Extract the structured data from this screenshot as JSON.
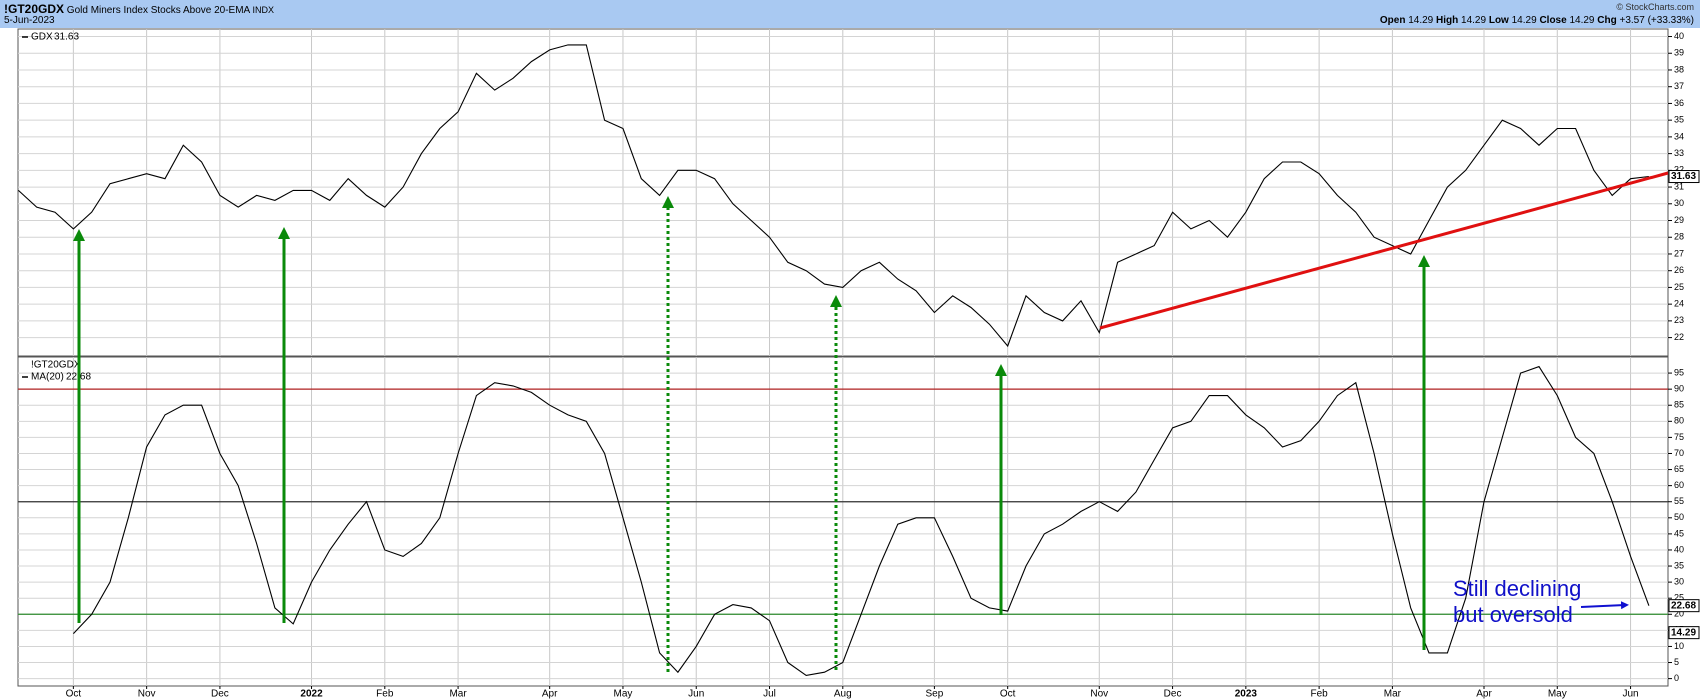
{
  "header": {
    "symbol": "!GT20GDX",
    "name": "Gold Miners Index Stocks Above 20-EMA",
    "exchange": "INDX",
    "date": "5-Jun-2023",
    "copyright": "© StockCharts.com",
    "quote": [
      {
        "label": "Open",
        "value": 14.29
      },
      {
        "label": "High",
        "value": 14.29
      },
      {
        "label": "Low",
        "value": 14.29
      },
      {
        "label": "Close",
        "value": 14.29
      },
      {
        "label": "Chg",
        "value": "+3.57 (+33.33%)"
      }
    ]
  },
  "chart_data": [
    {
      "type": "line",
      "ylim": [
        20.9,
        40.45
      ],
      "yticks": [
        22,
        23,
        24,
        25,
        26,
        27,
        28,
        29,
        30,
        31,
        32,
        33,
        34,
        35,
        36,
        37,
        38,
        39,
        40
      ],
      "grid": true,
      "series": [
        {
          "name": "GDX",
          "color": "#000000",
          "values": [
            30.8,
            29.8,
            29.5,
            28.5,
            29.5,
            31.2,
            31.5,
            31.8,
            31.5,
            33.5,
            32.5,
            30.5,
            29.8,
            30.5,
            30.2,
            30.8,
            30.8,
            30.2,
            31.5,
            30.5,
            29.8,
            31,
            33,
            34.5,
            35.5,
            37.8,
            36.8,
            37.5,
            38.5,
            39.2,
            39.5,
            39.5,
            35,
            34.5,
            31.5,
            30.5,
            32,
            32,
            31.5,
            30,
            29,
            28,
            26.5,
            26,
            25.2,
            25,
            26,
            26.5,
            25.5,
            24.8,
            23.5,
            24.5,
            23.8,
            22.8,
            21.5,
            24.5,
            23.5,
            23,
            24.2,
            22.3,
            26.5,
            27,
            27.5,
            29.5,
            28.5,
            29,
            28,
            29.5,
            31.5,
            32.5,
            32.5,
            31.8,
            30.5,
            29.5,
            28,
            27.5,
            27,
            29,
            31,
            32,
            33.5,
            35,
            34.5,
            33.5,
            34.5,
            34.5,
            32,
            30.5,
            31.5,
            31.63
          ]
        }
      ]
    },
    {
      "type": "line",
      "ylim": [
        -2.3,
        100
      ],
      "yticks": [
        0,
        5,
        10,
        15,
        20,
        25,
        30,
        35,
        40,
        45,
        50,
        55,
        60,
        65,
        70,
        75,
        80,
        85,
        90,
        95
      ],
      "grid": true,
      "last_close": 14.29,
      "reference_lines": [
        {
          "value": 90,
          "color": "#b22222"
        },
        {
          "value": 55,
          "color": "#333333"
        },
        {
          "value": 20,
          "color": "#2e8b2e"
        }
      ],
      "annotation": [
        "Still declining",
        "but oversold"
      ],
      "categories": [
        null,
        null,
        null,
        "Oct",
        null,
        null,
        null,
        "Nov",
        null,
        null,
        null,
        "Dec",
        null,
        null,
        null,
        null,
        "2022",
        null,
        null,
        null,
        "Feb",
        null,
        null,
        null,
        "Mar",
        null,
        null,
        null,
        null,
        "Apr",
        null,
        null,
        null,
        "May",
        null,
        null,
        null,
        "Jun",
        null,
        null,
        null,
        "Jul",
        null,
        null,
        null,
        "Aug",
        null,
        null,
        null,
        null,
        "Sep",
        null,
        null,
        null,
        "Oct",
        null,
        null,
        null,
        null,
        "Nov",
        null,
        null,
        null,
        "Dec",
        null,
        null,
        null,
        "2023",
        null,
        null,
        null,
        "Feb",
        null,
        null,
        null,
        "Mar",
        null,
        null,
        null,
        null,
        "Apr",
        null,
        null,
        null,
        "May",
        null,
        null,
        null,
        "Jun",
        null
      ],
      "series": [
        {
          "name": "MA(20)",
          "color": "#000000",
          "values": [
            null,
            null,
            null,
            14,
            20,
            30,
            50,
            72,
            82,
            85,
            85,
            70,
            60,
            42,
            22,
            17,
            30,
            40,
            48,
            55,
            40,
            38,
            42,
            50,
            70,
            88,
            92,
            91,
            89,
            85,
            82,
            80,
            70,
            50,
            30,
            8,
            2,
            10,
            20,
            23,
            22,
            18,
            5,
            1,
            2,
            5,
            20,
            35,
            48,
            50,
            50,
            38,
            25,
            22,
            21,
            35,
            45,
            48,
            52,
            55,
            52,
            58,
            68,
            78,
            80,
            88,
            88,
            82,
            78,
            72,
            74,
            80,
            88,
            92,
            70,
            45,
            22,
            8,
            8,
            25,
            55,
            75,
            95,
            97,
            88,
            75,
            70,
            55,
            38,
            22.68
          ]
        }
      ]
    }
  ]
}
